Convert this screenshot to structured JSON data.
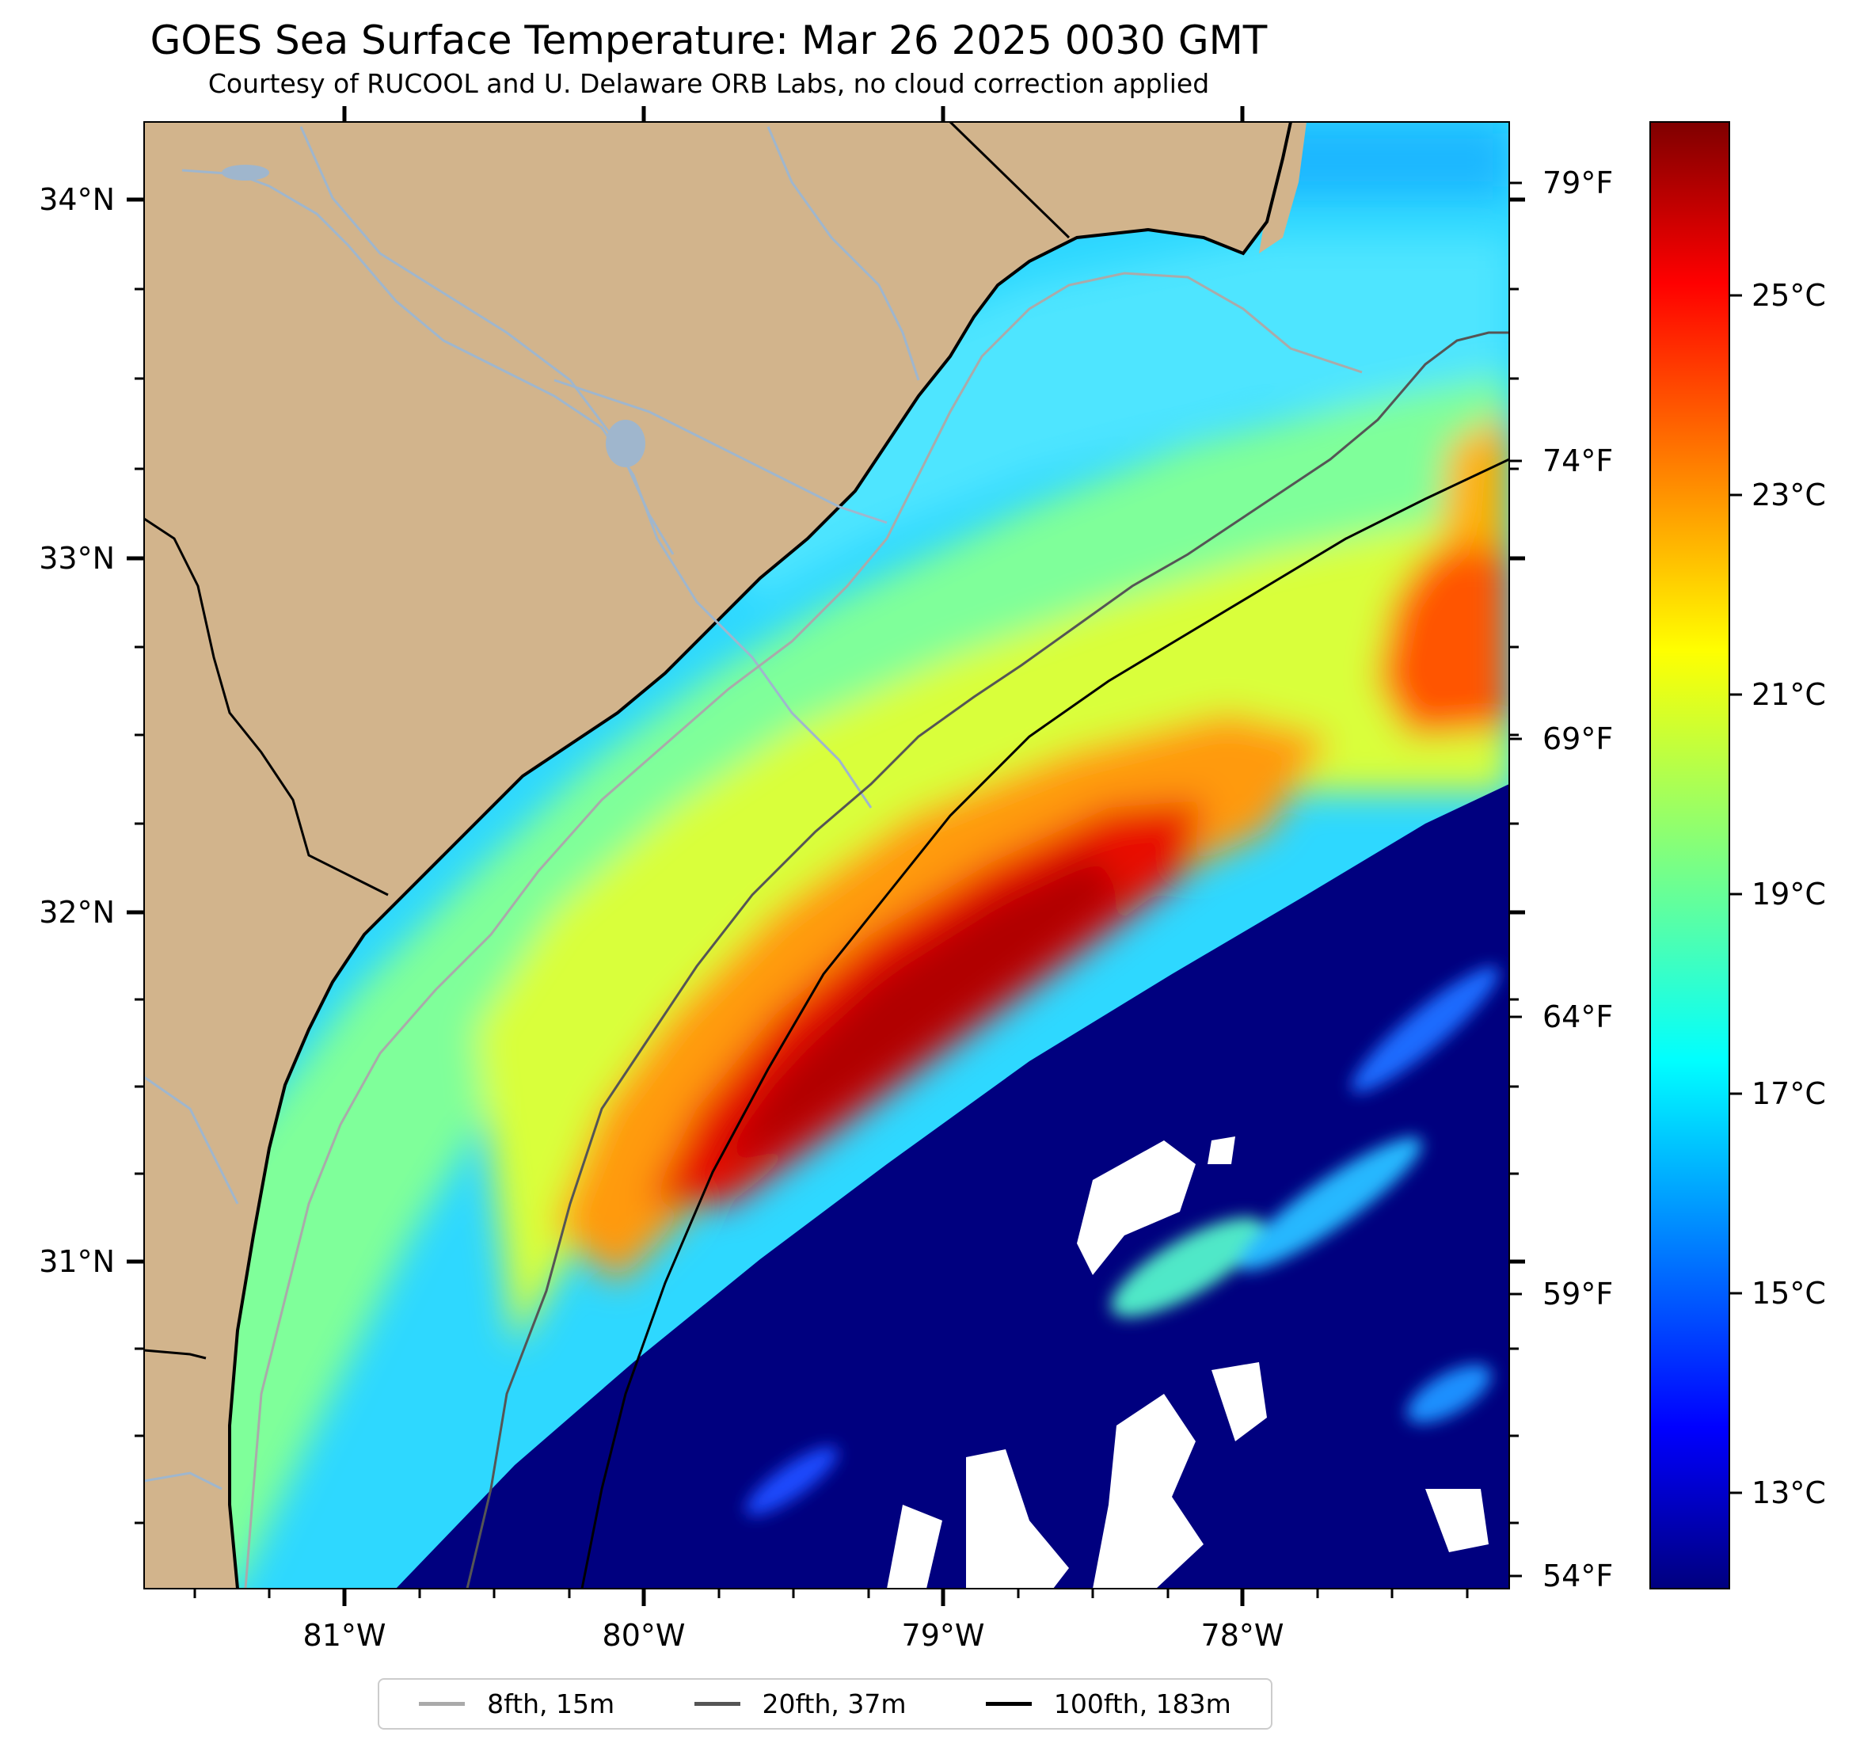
{
  "title": "GOES Sea Surface Temperature: Mar 26 2025 0030 GMT",
  "subtitle": "Courtesy of RUCOOL and U. Delaware ORB Labs, no cloud correction applied",
  "map": {
    "longitude_ticks": [
      "81°W",
      "80°W",
      "79°W",
      "78°W"
    ],
    "latitude_ticks": [
      "34°N",
      "33°N",
      "32°N",
      "31°N"
    ],
    "fahrenheit_ticks": [
      "79°F",
      "74°F",
      "69°F",
      "64°F",
      "59°F",
      "54°F"
    ]
  },
  "colorbar": {
    "colormap": "jet",
    "ticks": [
      "25°C",
      "23°C",
      "21°C",
      "19°C",
      "17°C",
      "15°C",
      "13°C"
    ],
    "colors": [
      "#00007f",
      "#0000ff",
      "#007fff",
      "#00ffff",
      "#7fff7f",
      "#ffff00",
      "#ff7f00",
      "#ff0000",
      "#7f0000"
    ]
  },
  "legend": [
    {
      "label": "8fth, 15m",
      "color": "#aaaaaa"
    },
    {
      "label": "20fth, 37m",
      "color": "#555555"
    },
    {
      "label": "100fth, 183m",
      "color": "#000000"
    }
  ],
  "colors": {
    "land": "#d2b48c",
    "no_data": "#ffffff",
    "rivers": "#9fb6cd"
  }
}
